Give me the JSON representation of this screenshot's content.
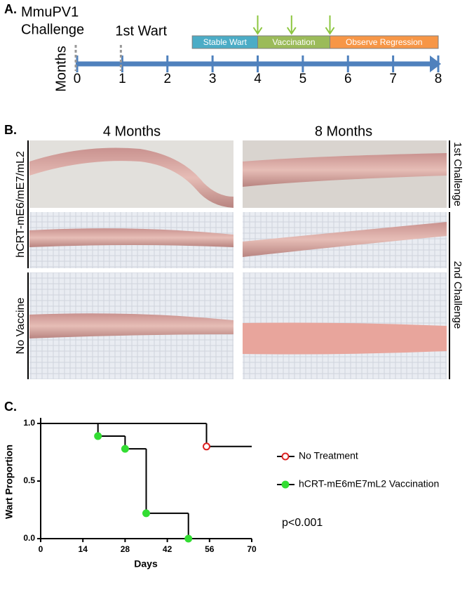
{
  "panels": {
    "a": {
      "label": "A.",
      "axis_label": "Months",
      "xlim": [
        0,
        8
      ],
      "ticks": [
        0,
        1,
        2,
        3,
        4,
        5,
        6,
        7,
        8
      ],
      "events": [
        {
          "lines": [
            "MmuPV1",
            "Challenge"
          ],
          "month": 0
        },
        {
          "lines": [
            "1st Wart"
          ],
          "month": 1
        }
      ],
      "phases": [
        {
          "label": "Stable Wart",
          "start": 2.55,
          "end": 4,
          "color": "#4bacc6"
        },
        {
          "label": "Vaccination",
          "start": 4,
          "end": 5.6,
          "color": "#9bbb59"
        },
        {
          "label": "Observe Regression",
          "start": 5.6,
          "end": 8,
          "color": "#f79646"
        }
      ],
      "vaccinations": [
        4,
        4.75,
        5.6
      ]
    },
    "b": {
      "label": "B.",
      "columns": [
        "4 Months",
        "8 Months"
      ],
      "row_groups": [
        "hCRT-mE6/mE7/mL2",
        "No Vaccine"
      ],
      "challenges": [
        "1st Challenge",
        "2nd Challenge"
      ]
    },
    "c": {
      "label": "C.",
      "chart_data": {
        "type": "line",
        "x_label": "Days",
        "y_label": "Wart Proportion",
        "xlim": [
          0,
          70
        ],
        "ylim": [
          0,
          1
        ],
        "xticks": [
          0,
          14,
          28,
          42,
          56,
          70
        ],
        "yticks": [
          {
            "value": 0,
            "label": "0.0"
          },
          {
            "value": 0.5,
            "label": "0.5"
          },
          {
            "value": 1,
            "label": "1.0"
          }
        ],
        "series": [
          {
            "name": "No Treatment",
            "color": "#000000",
            "marker_color": "#dd2222",
            "marker": "open",
            "x": [
              0,
              55,
              70
            ],
            "values": [
              1,
              0.8,
              0.8
            ]
          },
          {
            "name": "hCRT-mE6mE7mL2 Vaccination",
            "color": "#000000",
            "marker_color": "#33dd33",
            "marker": "filled",
            "x": [
              0,
              19,
              28,
              35,
              49
            ],
            "values": [
              1,
              0.89,
              0.78,
              0.22,
              0
            ]
          }
        ],
        "annotation": "p<0.001"
      }
    }
  }
}
